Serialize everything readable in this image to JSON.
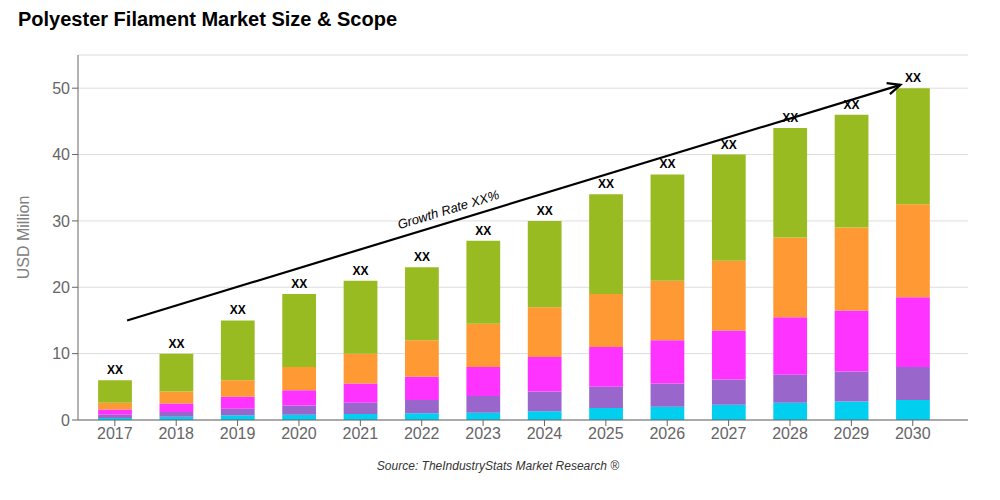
{
  "chart_data": {
    "type": "bar",
    "stacked": true,
    "title": "Polyester Filament Market Size & Scope",
    "y_label": "USD Million",
    "source": "Source: TheIndustryStats Market Research ®",
    "bar_label": "XX",
    "arrow": {
      "label": "Growth Rate XX%",
      "from": {
        "x": 2017.2,
        "y": 15.0
      },
      "to": {
        "x": 2029.8,
        "y": 50.5
      }
    },
    "x": [
      2017,
      2018,
      2019,
      2020,
      2021,
      2022,
      2023,
      2024,
      2025,
      2026,
      2027,
      2028,
      2029,
      2030
    ],
    "xlim": [
      2016.4,
      2030.9
    ],
    "xticks": [
      2017,
      2018,
      2019,
      2020,
      2021,
      2022,
      2023,
      2024,
      2025,
      2026,
      2027,
      2028,
      2029,
      2030
    ],
    "ylim": [
      0,
      55
    ],
    "yticks": [
      0,
      10,
      20,
      30,
      40,
      50
    ],
    "grid": true,
    "series": [
      {
        "color": "#00CFEF",
        "values": [
          0.3,
          0.5,
          0.7,
          0.8,
          0.9,
          1.0,
          1.1,
          1.3,
          1.8,
          2.0,
          2.3,
          2.6,
          2.8,
          3.0
        ]
      },
      {
        "color": "#9966CC",
        "values": [
          0.5,
          0.7,
          1.0,
          1.4,
          1.7,
          2.0,
          2.5,
          3.0,
          3.2,
          3.5,
          3.8,
          4.2,
          4.5,
          5.0
        ]
      },
      {
        "color": "#FF33FF",
        "values": [
          0.8,
          1.3,
          1.8,
          2.3,
          2.9,
          3.5,
          4.4,
          5.2,
          6.0,
          6.5,
          7.4,
          8.7,
          9.2,
          10.5
        ]
      },
      {
        "color": "#FF9933",
        "values": [
          1.0,
          1.8,
          2.5,
          3.5,
          4.5,
          5.5,
          6.5,
          7.5,
          8.0,
          9.0,
          10.5,
          12.0,
          12.5,
          14.0
        ]
      },
      {
        "color": "#99BB22",
        "values": [
          3.4,
          5.7,
          9.0,
          11.0,
          11.0,
          11.0,
          12.5,
          13.0,
          15.0,
          16.0,
          16.0,
          16.5,
          17.0,
          17.5
        ]
      }
    ]
  }
}
